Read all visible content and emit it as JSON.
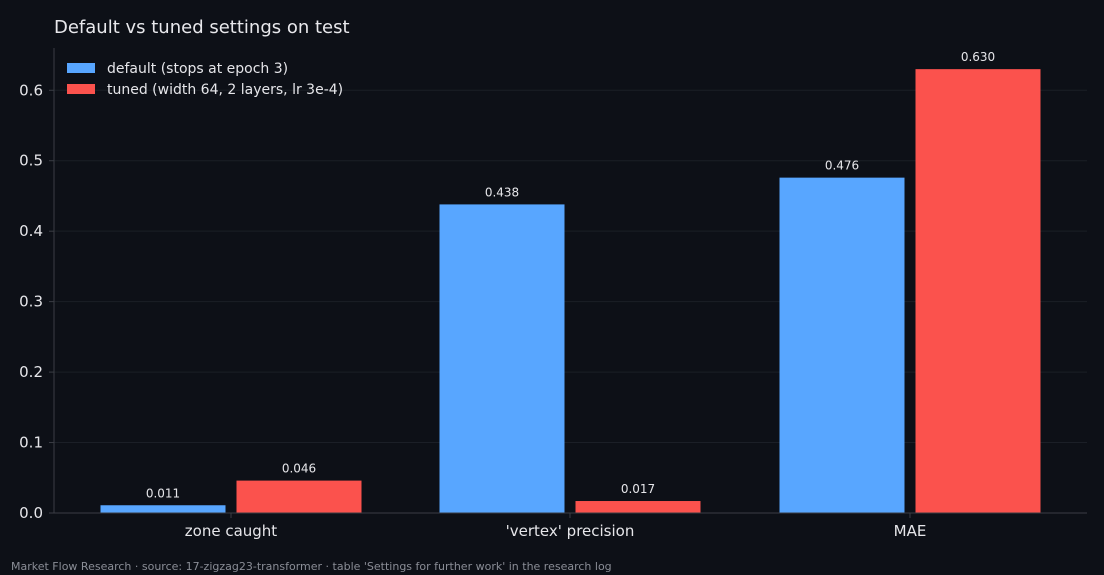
{
  "chart_data": {
    "type": "bar",
    "title": "Default vs tuned settings on test",
    "xlabel": "",
    "ylabel": "",
    "categories": [
      "zone caught",
      "'vertex' precision",
      "MAE"
    ],
    "series": [
      {
        "name": "default (stops at epoch 3)",
        "color": "#58a6ff",
        "values": [
          0.011,
          0.438,
          0.476
        ],
        "labels": [
          "0.011",
          "0.438",
          "0.476"
        ]
      },
      {
        "name": "tuned (width 64, 2 layers, lr 3e-4)",
        "color": "#fb524d",
        "values": [
          0.046,
          0.017,
          0.63
        ],
        "labels": [
          "0.046",
          "0.017",
          "0.630"
        ]
      }
    ],
    "ylim": [
      0,
      0.66
    ],
    "yticks": [
      0.0,
      0.1,
      0.2,
      0.3,
      0.4,
      0.5,
      0.6
    ],
    "ytick_labels": [
      "0.0",
      "0.1",
      "0.2",
      "0.3",
      "0.4",
      "0.5",
      "0.6"
    ],
    "grid": true,
    "legend": "top-left"
  },
  "footer": "Market Flow Research · source: 17-zigzag23-transformer · table 'Settings for further work' in the research log",
  "colors": {
    "background": "#0d1017",
    "grid": "#1b1f27",
    "axis": "#3a3d44",
    "text": "#e6e6ea"
  }
}
